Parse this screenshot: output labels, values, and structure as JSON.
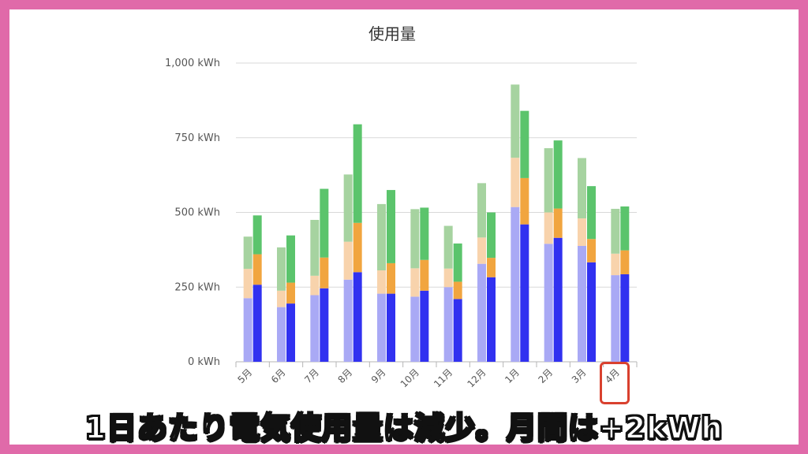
{
  "chart_data": {
    "type": "bar",
    "title": "使用量",
    "unit": "kWh",
    "ylim": [
      0,
      1000
    ],
    "yticks": [
      {
        "value": 0,
        "label": "0 kWh"
      },
      {
        "value": 250,
        "label": "250 kWh"
      },
      {
        "value": 500,
        "label": "500 kWh"
      },
      {
        "value": 750,
        "label": "750 kWh"
      },
      {
        "value": 1000,
        "label": "1,000 kWh"
      }
    ],
    "categories": [
      "5月",
      "6月",
      "7月",
      "8月",
      "9月",
      "10月",
      "11月",
      "12月",
      "1月",
      "2月",
      "3月",
      "4月"
    ],
    "grid": true,
    "groups": [
      {
        "name": "",
        "stack_colors": [
          "#a9a9f5",
          "#f8d3ac",
          "#a6d3a0"
        ],
        "stacks": [
          [
            213,
            98,
            108
          ],
          [
            183,
            55,
            145
          ],
          [
            223,
            65,
            187
          ],
          [
            275,
            127,
            225
          ],
          [
            228,
            78,
            222
          ],
          [
            218,
            95,
            198
          ],
          [
            250,
            62,
            143
          ],
          [
            328,
            88,
            182
          ],
          [
            518,
            165,
            245
          ],
          [
            395,
            105,
            215
          ],
          [
            388,
            92,
            202
          ],
          [
            290,
            72,
            150
          ]
        ]
      },
      {
        "name": "",
        "stack_colors": [
          "#3131f0",
          "#f1a53f",
          "#5bc46c"
        ],
        "stacks": [
          [
            258,
            102,
            130
          ],
          [
            195,
            70,
            158
          ],
          [
            246,
            103,
            230
          ],
          [
            300,
            165,
            330
          ],
          [
            228,
            102,
            245
          ],
          [
            238,
            103,
            175
          ],
          [
            210,
            58,
            128
          ],
          [
            283,
            65,
            152
          ],
          [
            460,
            155,
            225
          ],
          [
            415,
            98,
            228
          ],
          [
            333,
            78,
            177
          ],
          [
            293,
            80,
            147
          ]
        ]
      }
    ]
  },
  "caption": "1日あたり電気使用量は減少。月間は+2kWh",
  "highlight": {
    "category": "4月",
    "color": "#d9412f"
  }
}
